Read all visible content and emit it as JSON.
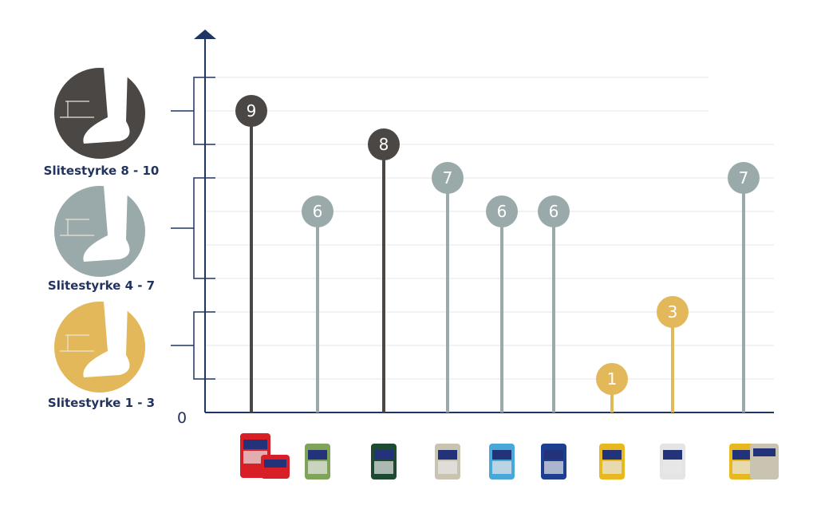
{
  "chart_data": {
    "type": "lollipop",
    "zero_label": "0",
    "ylim": [
      0,
      10
    ],
    "grid": true,
    "bands": [
      {
        "label": "Slitestyrke 8 - 10",
        "range": [
          8,
          10
        ],
        "color": "#4a4744",
        "icon": "forklift-work-boot-icon"
      },
      {
        "label": "Slitestyrke 4 - 7",
        "range": [
          4,
          7
        ],
        "color": "#9aa9a9",
        "icon": "office-high-heel-icon"
      },
      {
        "label": "Slitestyrke 1 - 3",
        "range": [
          1,
          3
        ],
        "color": "#e3b85a",
        "icon": "bedroom-sock-foot-icon"
      }
    ],
    "points": [
      {
        "value": 9,
        "color": "#4a4744",
        "product_color": "#d81f26"
      },
      {
        "value": 6,
        "color": "#9aa9a9",
        "product_color": "#7fa35a"
      },
      {
        "value": 8,
        "color": "#4a4744",
        "product_color": "#1f4a32"
      },
      {
        "value": 7,
        "color": "#9aa9a9",
        "product_color": "#c9c4b2"
      },
      {
        "value": 6,
        "color": "#9aa9a9",
        "product_color": "#4aa8d8"
      },
      {
        "value": 6,
        "color": "#9aa9a9",
        "product_color": "#1e3f8f"
      },
      {
        "value": 1,
        "color": "#e3b85a",
        "product_color": "#e8b820"
      },
      {
        "value": 3,
        "color": "#e3b85a",
        "product_color": "#e4e4e4"
      },
      {
        "value": 7,
        "color": "#9aa9a9",
        "product_color": "#e8b820"
      }
    ]
  },
  "colors": {
    "axis": "#1f3563",
    "grid": "#e6e6e6"
  }
}
